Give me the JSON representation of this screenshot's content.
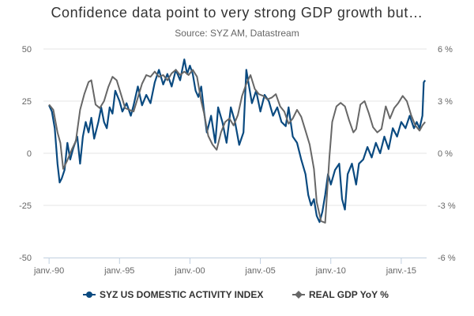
{
  "chart_data": {
    "type": "line",
    "title": "Confidence data point to very strong GDP growth but…",
    "subtitle": "Source: SYZ AM, Datastream",
    "x_axis": {
      "min": 1989.6,
      "max": 2016.8,
      "ticks": [
        1990,
        1995,
        2000,
        2005,
        2010,
        2015
      ],
      "tick_labels": [
        "janv.-90",
        "janv.-95",
        "janv.-00",
        "janv.-05",
        "janv.-10",
        "janv.-15"
      ]
    },
    "y_axis_left": {
      "min": -50,
      "max": 50,
      "ticks": [
        -50,
        -25,
        0,
        25,
        50
      ],
      "tick_labels": [
        "-50",
        "-25",
        "0",
        "25",
        "50"
      ]
    },
    "y_axis_right": {
      "min": -6,
      "max": 6,
      "unit": "%",
      "ticks": [
        -6,
        -3,
        0,
        3,
        6
      ],
      "tick_labels": [
        "-6 %",
        "-3 %",
        "0 %",
        "3 %",
        "6 %"
      ]
    },
    "grid": "horizontal",
    "legend_position": "bottom",
    "series": [
      {
        "name": "SYZ US DOMESTIC ACTIVITY INDEX",
        "axis": "left",
        "color": "#0a4a80",
        "marker": "circle",
        "points": [
          [
            1990.0,
            23
          ],
          [
            1990.2,
            20
          ],
          [
            1990.4,
            12
          ],
          [
            1990.6,
            -5
          ],
          [
            1990.75,
            -14
          ],
          [
            1990.9,
            -12
          ],
          [
            1991.1,
            -8
          ],
          [
            1991.3,
            5
          ],
          [
            1991.5,
            -3
          ],
          [
            1991.7,
            2
          ],
          [
            1992.0,
            8
          ],
          [
            1992.2,
            -5
          ],
          [
            1992.4,
            8
          ],
          [
            1992.6,
            15
          ],
          [
            1992.8,
            10
          ],
          [
            1993.0,
            17
          ],
          [
            1993.2,
            7
          ],
          [
            1993.5,
            15
          ],
          [
            1993.7,
            22
          ],
          [
            1993.9,
            15
          ],
          [
            1994.1,
            12
          ],
          [
            1994.3,
            22
          ],
          [
            1994.5,
            19
          ],
          [
            1994.7,
            30
          ],
          [
            1995.0,
            25
          ],
          [
            1995.2,
            20
          ],
          [
            1995.5,
            24
          ],
          [
            1995.8,
            18
          ],
          [
            1996.0,
            23
          ],
          [
            1996.3,
            32
          ],
          [
            1996.6,
            23
          ],
          [
            1996.9,
            28
          ],
          [
            1997.2,
            24
          ],
          [
            1997.5,
            34
          ],
          [
            1997.8,
            40
          ],
          [
            1998.1,
            33
          ],
          [
            1998.4,
            38
          ],
          [
            1998.7,
            32
          ],
          [
            1999.0,
            40
          ],
          [
            1999.3,
            35
          ],
          [
            1999.6,
            45
          ],
          [
            1999.8,
            38
          ],
          [
            2000.0,
            42
          ],
          [
            2000.2,
            38
          ],
          [
            2000.4,
            30
          ],
          [
            2000.6,
            27
          ],
          [
            2000.8,
            32
          ],
          [
            2001.0,
            20
          ],
          [
            2001.2,
            10
          ],
          [
            2001.5,
            18
          ],
          [
            2001.8,
            5
          ],
          [
            2002.0,
            22
          ],
          [
            2002.3,
            15
          ],
          [
            2002.6,
            5
          ],
          [
            2002.9,
            22
          ],
          [
            2003.2,
            15
          ],
          [
            2003.5,
            4
          ],
          [
            2003.8,
            10
          ],
          [
            2004.0,
            40
          ],
          [
            2004.2,
            32
          ],
          [
            2004.4,
            24
          ],
          [
            2004.7,
            30
          ],
          [
            2005.0,
            20
          ],
          [
            2005.3,
            28
          ],
          [
            2005.6,
            25
          ],
          [
            2005.9,
            18
          ],
          [
            2006.2,
            22
          ],
          [
            2006.5,
            15
          ],
          [
            2006.8,
            13
          ],
          [
            2007.0,
            22
          ],
          [
            2007.3,
            8
          ],
          [
            2007.6,
            5
          ],
          [
            2007.9,
            -3
          ],
          [
            2008.2,
            -10
          ],
          [
            2008.4,
            -20
          ],
          [
            2008.6,
            -25
          ],
          [
            2008.8,
            -22
          ],
          [
            2009.0,
            -30
          ],
          [
            2009.2,
            -33
          ],
          [
            2009.4,
            -28
          ],
          [
            2009.6,
            -20
          ],
          [
            2009.8,
            -10
          ],
          [
            2010.0,
            -15
          ],
          [
            2010.3,
            -8
          ],
          [
            2010.6,
            -5
          ],
          [
            2010.8,
            -22
          ],
          [
            2011.0,
            -27
          ],
          [
            2011.2,
            -10
          ],
          [
            2011.5,
            -5
          ],
          [
            2011.8,
            -15
          ],
          [
            2012.0,
            -5
          ],
          [
            2012.3,
            -3
          ],
          [
            2012.6,
            3
          ],
          [
            2012.9,
            -2
          ],
          [
            2013.2,
            5
          ],
          [
            2013.5,
            0
          ],
          [
            2013.8,
            8
          ],
          [
            2014.1,
            2
          ],
          [
            2014.4,
            12
          ],
          [
            2014.7,
            8
          ],
          [
            2015.0,
            15
          ],
          [
            2015.3,
            12
          ],
          [
            2015.6,
            18
          ],
          [
            2015.9,
            12
          ],
          [
            2016.1,
            15
          ],
          [
            2016.3,
            12
          ],
          [
            2016.5,
            18
          ],
          [
            2016.6,
            34
          ],
          [
            2016.7,
            35
          ]
        ]
      },
      {
        "name": "REAL GDP YoY %",
        "axis": "right",
        "color": "#676767",
        "marker": "diamond",
        "points": [
          [
            1990.0,
            2.8
          ],
          [
            1990.3,
            2.5
          ],
          [
            1990.6,
            1.2
          ],
          [
            1990.8,
            0.6
          ],
          [
            1991.0,
            -0.9
          ],
          [
            1991.3,
            -0.4
          ],
          [
            1991.6,
            0.2
          ],
          [
            1991.9,
            0.7
          ],
          [
            1992.2,
            2.5
          ],
          [
            1992.5,
            3.4
          ],
          [
            1992.8,
            4.1
          ],
          [
            1993.0,
            4.2
          ],
          [
            1993.3,
            2.8
          ],
          [
            1993.6,
            2.6
          ],
          [
            1993.9,
            3.0
          ],
          [
            1994.2,
            3.8
          ],
          [
            1994.5,
            4.4
          ],
          [
            1994.8,
            4.2
          ],
          [
            1995.1,
            3.4
          ],
          [
            1995.4,
            2.6
          ],
          [
            1995.7,
            2.5
          ],
          [
            1996.0,
            2.4
          ],
          [
            1996.3,
            3.2
          ],
          [
            1996.6,
            4.0
          ],
          [
            1996.9,
            4.5
          ],
          [
            1997.2,
            4.4
          ],
          [
            1997.5,
            4.7
          ],
          [
            1997.8,
            4.4
          ],
          [
            1998.1,
            4.5
          ],
          [
            1998.4,
            4.2
          ],
          [
            1998.7,
            4.6
          ],
          [
            1999.0,
            4.8
          ],
          [
            1999.3,
            4.5
          ],
          [
            1999.6,
            4.7
          ],
          [
            1999.9,
            4.5
          ],
          [
            2000.2,
            4.8
          ],
          [
            2000.5,
            4.4
          ],
          [
            2000.8,
            3.0
          ],
          [
            2001.0,
            2.3
          ],
          [
            2001.3,
            1.0
          ],
          [
            2001.6,
            0.5
          ],
          [
            2001.9,
            0.2
          ],
          [
            2002.2,
            1.2
          ],
          [
            2002.5,
            1.8
          ],
          [
            2002.8,
            2.0
          ],
          [
            2003.1,
            1.6
          ],
          [
            2003.4,
            2.2
          ],
          [
            2003.7,
            3.3
          ],
          [
            2004.0,
            4.0
          ],
          [
            2004.3,
            4.5
          ],
          [
            2004.6,
            3.7
          ],
          [
            2004.9,
            3.4
          ],
          [
            2005.2,
            3.3
          ],
          [
            2005.5,
            3.1
          ],
          [
            2005.8,
            3.2
          ],
          [
            2006.1,
            3.4
          ],
          [
            2006.4,
            2.7
          ],
          [
            2006.7,
            2.4
          ],
          [
            2007.0,
            1.7
          ],
          [
            2007.3,
            2.0
          ],
          [
            2007.6,
            2.5
          ],
          [
            2007.9,
            2.1
          ],
          [
            2008.2,
            1.3
          ],
          [
            2008.5,
            0.5
          ],
          [
            2008.8,
            -0.9
          ],
          [
            2009.0,
            -2.8
          ],
          [
            2009.3,
            -3.9
          ],
          [
            2009.6,
            -4.0
          ],
          [
            2009.9,
            -0.2
          ],
          [
            2010.1,
            1.8
          ],
          [
            2010.4,
            2.7
          ],
          [
            2010.7,
            2.9
          ],
          [
            2011.0,
            2.7
          ],
          [
            2011.3,
            1.9
          ],
          [
            2011.6,
            1.2
          ],
          [
            2011.8,
            1.4
          ],
          [
            2012.1,
            2.8
          ],
          [
            2012.4,
            3.0
          ],
          [
            2012.7,
            2.3
          ],
          [
            2013.0,
            1.5
          ],
          [
            2013.3,
            1.2
          ],
          [
            2013.6,
            1.4
          ],
          [
            2013.9,
            2.7
          ],
          [
            2014.2,
            2.0
          ],
          [
            2014.5,
            2.6
          ],
          [
            2014.8,
            2.9
          ],
          [
            2015.1,
            3.3
          ],
          [
            2015.4,
            3.0
          ],
          [
            2015.7,
            2.2
          ],
          [
            2016.0,
            1.6
          ],
          [
            2016.3,
            1.3
          ],
          [
            2016.5,
            1.6
          ],
          [
            2016.7,
            1.8
          ]
        ]
      }
    ]
  }
}
